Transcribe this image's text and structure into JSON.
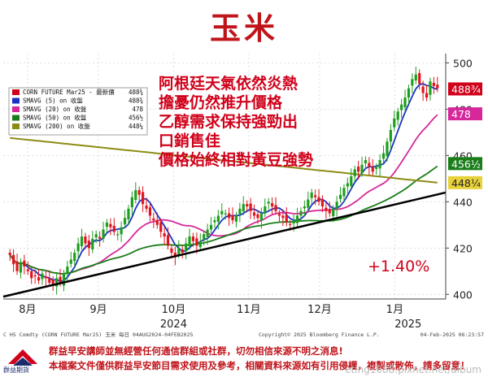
{
  "title": "玉米",
  "chart_data": {
    "type": "candlestick",
    "instrument": "C H5 Comdty (CORN FUTURE Mar25) 玉米 每日 04AUG2024-04FEB2025",
    "copyright": "Copyright© 2025 Bloomberg Finance L.P.",
    "timestamp": "04-Feb-2025 06:23:57",
    "ylim": [
      398,
      504
    ],
    "y_ticks": [
      400,
      420,
      440,
      460,
      480,
      500
    ],
    "x_months": [
      {
        "label": "8月",
        "pos": 0.055
      },
      {
        "label": "9月",
        "pos": 0.215
      },
      {
        "label": "10月",
        "pos": 0.385
      },
      {
        "label": "11月",
        "pos": 0.555
      },
      {
        "label": "12月",
        "pos": 0.715
      },
      {
        "label": "1月",
        "pos": 0.885
      }
    ],
    "x_years": [
      {
        "label": "2024",
        "pos": 0.385
      },
      {
        "label": "2025",
        "pos": 0.915
      }
    ],
    "legend": [
      {
        "name": "CORN FUTURE Mar25 - 最新價",
        "value": "488¾",
        "color": "#d0021b"
      },
      {
        "name": "SMAVG (5) on 收盤",
        "value": "488¾",
        "color": "#1a33c4"
      },
      {
        "name": "SMAVG (20) on 收盤",
        "value": "478",
        "color": "#d6289b"
      },
      {
        "name": "SMAVG (50) on 收盤",
        "value": "456½",
        "color": "#1a7d1a"
      },
      {
        "name": "SMAVG (200) on 收盤",
        "value": "448¼",
        "color": "#8c8c14"
      }
    ],
    "price_tags": [
      {
        "label": "488¾",
        "value": 488.75,
        "bg": "#d0021b",
        "fg": "#ffffff"
      },
      {
        "label": "478",
        "value": 478,
        "bg": "#d6289b",
        "fg": "#ffffff"
      },
      {
        "label": "456½",
        "value": 456.5,
        "bg": "#1a7d1a",
        "fg": "#ffffff"
      },
      {
        "label": "448¼",
        "value": 448.25,
        "bg": "#e8d23c",
        "fg": "#222222"
      }
    ],
    "annotation_lines": [
      "阿根廷天氣依然炎熱",
      "擔憂仍然推升價格",
      "乙醇需求保持強勁出",
      "口銷售佳",
      "價格始終相對黃豆強勢"
    ],
    "percent_change": "+1.40%",
    "trendline": {
      "from": 399,
      "to": 444
    },
    "closes": [
      417,
      413,
      410,
      414,
      412,
      410,
      407,
      408,
      406,
      409,
      407,
      405,
      404,
      407,
      405,
      409,
      412,
      415,
      418,
      422,
      425,
      422,
      420,
      424,
      426,
      424,
      428,
      431,
      429,
      427,
      426,
      429,
      433,
      437,
      442,
      445,
      443,
      439,
      437,
      434,
      432,
      430,
      427,
      425,
      421,
      418,
      416,
      420,
      418,
      422,
      425,
      423,
      421,
      423,
      426,
      428,
      430,
      432,
      434,
      436,
      435,
      433,
      432,
      434,
      437,
      439,
      438,
      436,
      434,
      433,
      435,
      438,
      440,
      438,
      436,
      434,
      433,
      431,
      430,
      432,
      434,
      436,
      438,
      441,
      444,
      442,
      440,
      438,
      436,
      435,
      437,
      440,
      443,
      446,
      448,
      451,
      454,
      453,
      456,
      458,
      455,
      453,
      455,
      458,
      461,
      466,
      471,
      476,
      479,
      482,
      485,
      489,
      493,
      495,
      491,
      487,
      485,
      492,
      490,
      489
    ],
    "ma5_end": 488.75,
    "ma20_end": 478,
    "ma50_end": 456.5,
    "ma200": {
      "start": 471,
      "end": 448.25
    }
  },
  "footer": {
    "line1": "群益早安講師並無經營任何通信群組或社群，切勿相信來源不明之消息!",
    "line2": "本檔案文件僅供群益早安節目需求使用及參考，相關資料來源如有引用侵權，複製或散佈，請多留意！",
    "watermark": "eting1688.pixnet.net/album",
    "logo_text": "群益期貨"
  }
}
